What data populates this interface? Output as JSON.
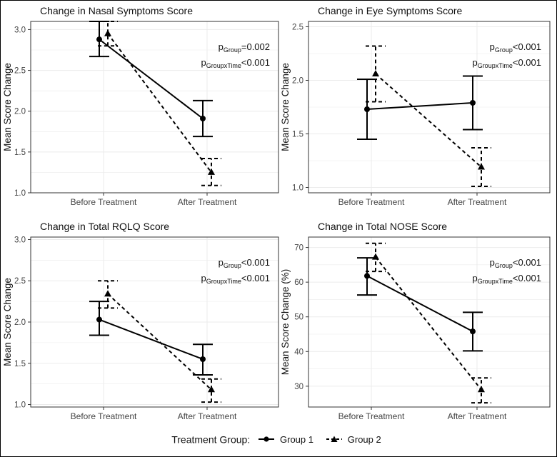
{
  "colors": {
    "line": "#000000",
    "grid": "#ebebeb",
    "panel_border": "#333333",
    "text": "#111111"
  },
  "legend": {
    "title": "Treatment Group:",
    "items": [
      {
        "label": "Group 1",
        "marker": "circle",
        "line": "solid"
      },
      {
        "label": "Group 2",
        "marker": "triangle",
        "line": "dashed"
      }
    ]
  },
  "chart_data": [
    {
      "type": "line",
      "title": "Change in Nasal Symptoms Score",
      "ylabel": "Mean Score Change",
      "xlabel": "",
      "categories": [
        "Before Treatment",
        "After Treatment"
      ],
      "ylim": [
        1.0,
        3.1
      ],
      "yticks": [
        1.0,
        1.5,
        2.0,
        2.5,
        3.0
      ],
      "yticklabels": [
        "1.0",
        "1.5",
        "2.0",
        "2.5",
        "3.0"
      ],
      "series": [
        {
          "name": "Group 1",
          "values": [
            2.88,
            1.91
          ],
          "err_low": [
            2.67,
            1.69
          ],
          "err_high": [
            3.1,
            2.13
          ]
        },
        {
          "name": "Group 2",
          "values": [
            2.95,
            1.25
          ],
          "err_low": [
            2.8,
            1.09
          ],
          "err_high": [
            3.1,
            1.42
          ]
        }
      ],
      "stats": [
        {
          "p": "p",
          "sub": "Group",
          "rest": "=0.002"
        },
        {
          "p": "p",
          "sub": "GroupxTime",
          "rest": "<0.001"
        }
      ],
      "grid": true
    },
    {
      "type": "line",
      "title": "Change in Eye Symptoms Score",
      "ylabel": "Mean Score Change",
      "xlabel": "",
      "categories": [
        "Before Treatment",
        "After Treatment"
      ],
      "ylim": [
        0.95,
        2.55
      ],
      "yticks": [
        1.0,
        1.5,
        2.0,
        2.5
      ],
      "yticklabels": [
        "1.0",
        "1.5",
        "2.0",
        "2.5"
      ],
      "series": [
        {
          "name": "Group 1",
          "values": [
            1.73,
            1.79
          ],
          "err_low": [
            1.45,
            1.54
          ],
          "err_high": [
            2.01,
            2.04
          ]
        },
        {
          "name": "Group 2",
          "values": [
            2.06,
            1.19
          ],
          "err_low": [
            1.8,
            1.01
          ],
          "err_high": [
            2.32,
            1.37
          ]
        }
      ],
      "stats": [
        {
          "p": "p",
          "sub": "Group",
          "rest": "<0.001"
        },
        {
          "p": "p",
          "sub": "GroupxTime",
          "rest": "<0.001"
        }
      ],
      "grid": true
    },
    {
      "type": "line",
      "title": "Change in Total RQLQ Score",
      "ylabel": "Mean Score Change",
      "xlabel": "",
      "categories": [
        "Before Treatment",
        "After Treatment"
      ],
      "ylim": [
        0.97,
        3.03
      ],
      "yticks": [
        1.0,
        1.5,
        2.0,
        2.5,
        3.0
      ],
      "yticklabels": [
        "1.0",
        "1.5",
        "2.0",
        "2.5",
        "3.0"
      ],
      "series": [
        {
          "name": "Group 1",
          "values": [
            2.03,
            1.55
          ],
          "err_low": [
            1.84,
            1.36
          ],
          "err_high": [
            2.25,
            1.73
          ]
        },
        {
          "name": "Group 2",
          "values": [
            2.34,
            1.18
          ],
          "err_low": [
            2.17,
            1.03
          ],
          "err_high": [
            2.5,
            1.31
          ]
        }
      ],
      "stats": [
        {
          "p": "p",
          "sub": "Group",
          "rest": "<0.001"
        },
        {
          "p": "p",
          "sub": "GroupxTime",
          "rest": "<0.001"
        }
      ],
      "grid": true
    },
    {
      "type": "line",
      "title": "Change in Total NOSE Score",
      "ylabel": "Mean Score Change (%)",
      "xlabel": "",
      "categories": [
        "Before Treatment",
        "After Treatment"
      ],
      "ylim": [
        24,
        73
      ],
      "yticks": [
        30,
        40,
        50,
        60,
        70
      ],
      "yticklabels": [
        "30",
        "40",
        "50",
        "60",
        "70"
      ],
      "series": [
        {
          "name": "Group 1",
          "values": [
            61.8,
            45.8
          ],
          "err_low": [
            56.3,
            40.2
          ],
          "err_high": [
            67.0,
            51.3
          ]
        },
        {
          "name": "Group 2",
          "values": [
            67.2,
            29.0
          ],
          "err_low": [
            63.1,
            25.2
          ],
          "err_high": [
            71.2,
            32.4
          ]
        }
      ],
      "stats": [
        {
          "p": "p",
          "sub": "Group",
          "rest": "<0.001"
        },
        {
          "p": "p",
          "sub": "GroupxTime",
          "rest": "<0.001"
        }
      ],
      "grid": true
    }
  ]
}
